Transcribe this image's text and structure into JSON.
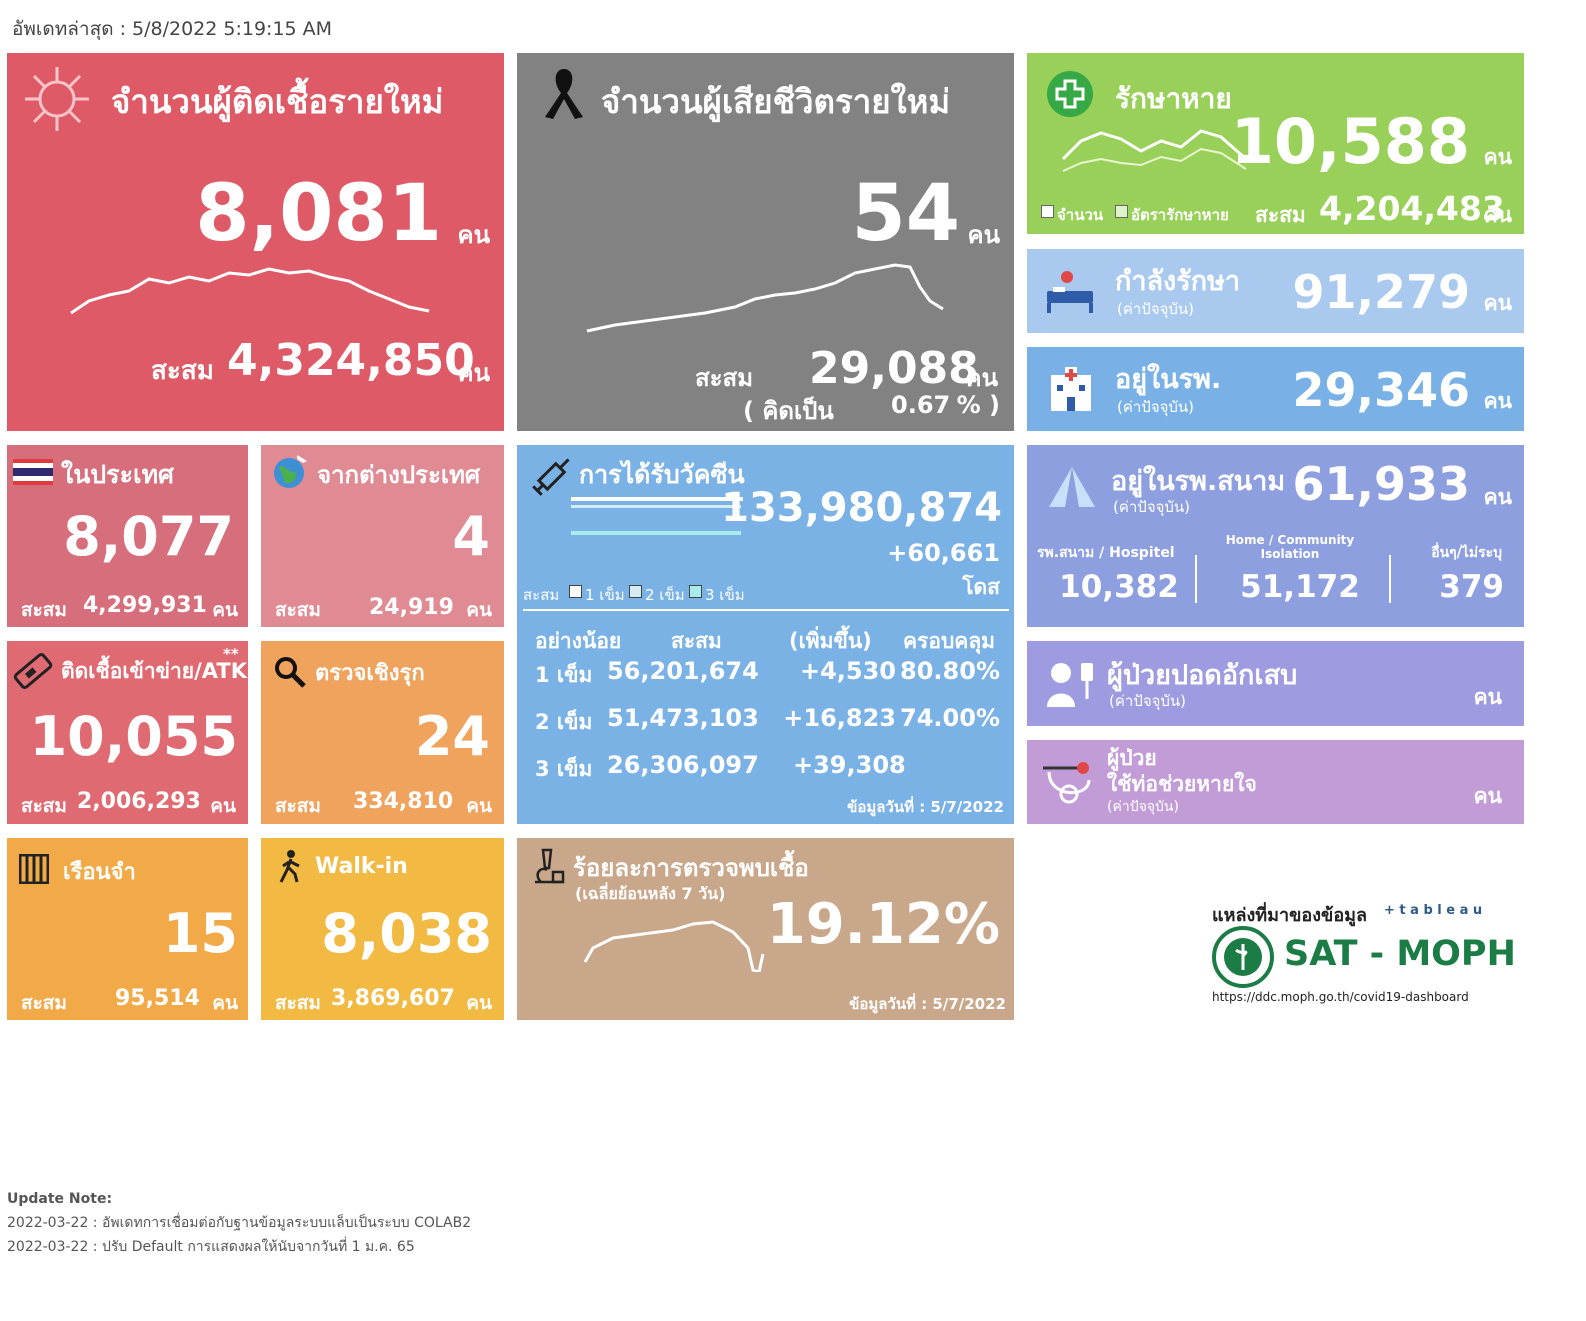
{
  "header": {
    "updated": "อัพเดทล่าสุด : 5/8/2022 5:19:15 AM"
  },
  "colors": {
    "new_cases": "#de5a67",
    "deaths": "#828282",
    "recovered": "#99d059",
    "treating": "#a9c9ef",
    "hospital": "#79b1e6",
    "field": "#8e9fe0",
    "pneumonia": "#9e9be0",
    "ventilator": "#c29cd7",
    "domestic": "#d76e7c",
    "foreign": "#e08b94",
    "atk": "#e06a71",
    "proactive": "#f0a35d",
    "vaccine": "#7bb2e6",
    "prison": "#f2aa48",
    "walkin": "#f2ba42",
    "positivity": "#c9a78a"
  },
  "new_cases": {
    "title": "จำนวนผู้ติดเชื้อรายใหม่",
    "value": "8,081",
    "unit": "คน",
    "cum_label": "สะสม",
    "cum": "4,324,850",
    "cum_unit": "คน",
    "icon": "virus-icon"
  },
  "deaths": {
    "title": "จำนวนผู้เสียชีวิตรายใหม่",
    "value": "54",
    "unit": "คน",
    "cum_label": "สะสม",
    "cum": "29,088",
    "cum_unit": "คน",
    "rate_open": "( คิดเป็น",
    "rate": "0.67",
    "rate_close": "% )",
    "icon": "ribbon-icon"
  },
  "recovered": {
    "title": "รักษาหาย",
    "value": "10,588",
    "unit": "คน",
    "legend_count": "จำนวน",
    "legend_rate": "อัตรารักษาหาย",
    "cum_label": "สะสม",
    "cum": "4,204,483",
    "cum_unit": "คน",
    "icon": "plus-cross-icon"
  },
  "treating": {
    "title": "กำลังรักษา",
    "sub": "(ค่าปัจจุบัน)",
    "value": "91,279",
    "unit": "คน",
    "icon": "hospital-bed-icon"
  },
  "hospital": {
    "title": "อยู่ในรพ.",
    "sub": "(ค่าปัจจุบัน)",
    "value": "29,346",
    "unit": "คน",
    "icon": "hospital-building-icon"
  },
  "field": {
    "title": "อยู่ในรพ.สนาม",
    "sub": "(ค่าปัจจุบัน)",
    "value": "61,933",
    "unit": "คน",
    "c1_label": "รพ.สนาม / Hospitel",
    "c1": "10,382",
    "c2_label": "Home / Community Isolation",
    "c2": "51,172",
    "c3_label": "อื่นๆ/ไม่ระบุ",
    "c3": "379",
    "icon": "tent-icon"
  },
  "pneumonia": {
    "title": "ผู้ป่วยปอดอักเสบ",
    "sub": "(ค่าปัจจุบัน)",
    "unit": "คน",
    "icon": "patient-iv-icon"
  },
  "ventilator": {
    "title1": "ผู้ป่วย",
    "title2": "ใช้ท่อช่วยหายใจ",
    "sub": "(ค่าปัจจุบัน)",
    "unit": "คน",
    "icon": "ventilator-icon"
  },
  "domestic": {
    "title": "ในประเทศ",
    "value": "8,077",
    "cum_label": "สะสม",
    "cum": "4,299,931",
    "cum_unit": "คน",
    "icon": "thai-flag-icon"
  },
  "foreign": {
    "title": "จากต่างประเทศ",
    "value": "4",
    "cum_label": "สะสม",
    "cum": "24,919",
    "cum_unit": "คน",
    "icon": "globe-plane-icon"
  },
  "atk": {
    "title": "ติดเชื้อเข้าข่าย/ATK",
    "stars": "**",
    "value": "10,055",
    "cum_label": "สะสม",
    "cum": "2,006,293",
    "cum_unit": "คน",
    "icon": "atk-kit-icon"
  },
  "proactive": {
    "title": "ตรวจเชิงรุก",
    "value": "24",
    "cum_label": "สะสม",
    "cum": "334,810",
    "cum_unit": "คน",
    "icon": "magnifier-icon"
  },
  "vaccine": {
    "title": "การได้รับวัคซีน",
    "total": "133,980,874",
    "delta": "+60,661",
    "unit": "โดส",
    "legend_cum": "สะสม",
    "l1": "1 เข็ม",
    "l2": "2 เข็ม",
    "l3": "3 เข็ม",
    "headers": [
      "อย่างน้อย",
      "สะสม",
      "(เพิ่มขึ้น)",
      "ครอบคลุม"
    ],
    "rows": [
      [
        "1 เข็ม",
        "56,201,674",
        "+4,530",
        "80.80%"
      ],
      [
        "2 เข็ม",
        "51,473,103",
        "+16,823",
        "74.00%"
      ],
      [
        "3 เข็ม",
        "26,306,097",
        "+39,308",
        ""
      ]
    ],
    "date": "ข้อมูลวันที่ : 5/7/2022",
    "icon": "syringe-icon"
  },
  "prison": {
    "title": "เรือนจำ",
    "value": "15",
    "cum_label": "สะสม",
    "cum": "95,514",
    "cum_unit": "คน",
    "icon": "prison-bars-icon"
  },
  "walkin": {
    "title": "Walk-in",
    "value": "8,038",
    "cum_label": "สะสม",
    "cum": "3,869,607",
    "cum_unit": "คน",
    "icon": "walking-person-icon"
  },
  "positivity": {
    "title": "ร้อยละการตรวจพบเชื้อ",
    "sub": "(เฉลี่ยย้อนหลัง 7 วัน)",
    "value": "19.12%",
    "date": "ข้อมูลวันที่ : 5/7/2022",
    "icon": "microscope-icon"
  },
  "source": {
    "label": "แหล่งที่มาของข้อมูล",
    "tableau": "+ t a b l e a u",
    "brand": "SAT - MOPH",
    "url": "https://ddc.moph.go.th/covid19-dashboard"
  },
  "notes": {
    "title": "Update Note:",
    "n1": "2022-03-22 : อัพเดทการเชื่อมต่อกับฐานข้อมูลระบบแล็บเป็นระบบ COLAB2",
    "n2": "2022-03-22 : ปรับ Default การแสดงผลให้นับจากวันที่ 1 ม.ค. 65"
  }
}
